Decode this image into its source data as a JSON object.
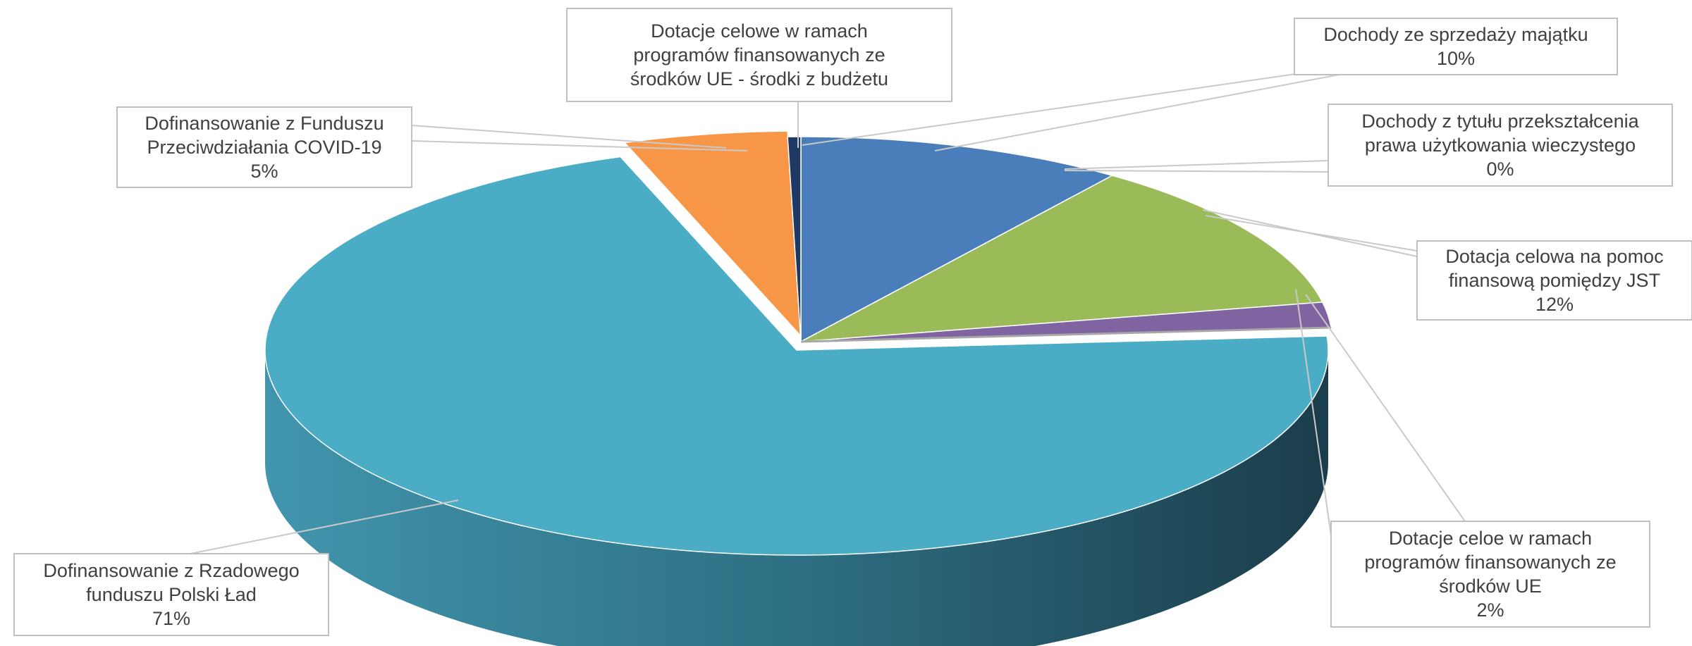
{
  "chart_data": {
    "type": "pie",
    "style": "3d-exploded-pie",
    "title": "",
    "slices": [
      {
        "label_lines": [
          "Dochody ze sprzedaży majątku"
        ],
        "percent_label": "10%",
        "value": 10,
        "color": "#4a7ebb"
      },
      {
        "label_lines": [
          "Dotacja celowa na pomoc",
          "finansową pomiędzy JST"
        ],
        "percent_label": "12%",
        "value": 12,
        "color": "#9bbb59"
      },
      {
        "label_lines": [
          "Dotacje celoe w ramach",
          "programów finansowanych ze",
          "środków UE"
        ],
        "percent_label": "2%",
        "value": 2,
        "color": "#8064a2"
      },
      {
        "label_lines": [
          "Dochody z tytułu przekształcenia",
          "prawa użytkowania wieczystego"
        ],
        "percent_label": "0%",
        "value": 0,
        "color": "#a6a6a6"
      },
      {
        "label_lines": [
          "Dofinansowanie z Rzadowego",
          "funduszu Polski Ład"
        ],
        "percent_label": "71%",
        "value": 71,
        "color": "#4bacc6"
      },
      {
        "label_lines": [
          "Dofinansowanie z Funduszu",
          "Przeciwdziałania COVID-19"
        ],
        "percent_label": "5%",
        "value": 5,
        "color": "#f79646"
      },
      {
        "label_lines": [
          "Dotacje celowe w ramach",
          "programów finansowanych ze",
          "środków UE - środki z budżetu"
        ],
        "percent_label": "",
        "value": 0.4,
        "color": "#1f3864"
      }
    ]
  }
}
